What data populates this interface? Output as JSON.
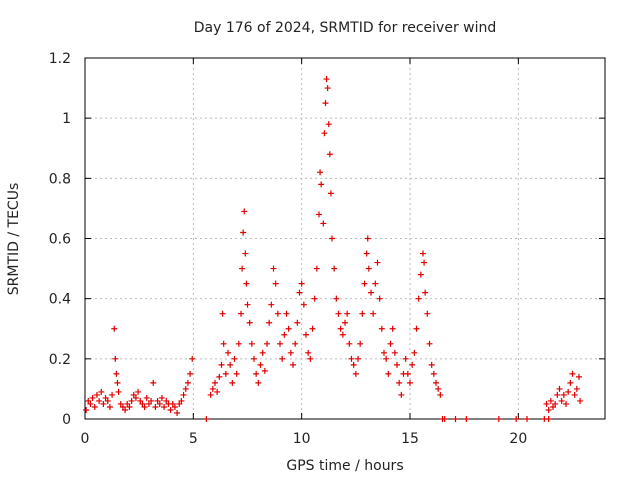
{
  "chart_data": {
    "type": "scatter",
    "title": "Day 176 of 2024, SRMTID for receiver wind",
    "xlabel": "GPS time / hours",
    "ylabel": "SRMTID / TECUs",
    "xlim": [
      0,
      24
    ],
    "ylim": [
      0,
      1.2
    ],
    "xticks": [
      0,
      5,
      10,
      15,
      20
    ],
    "yticks": [
      0,
      0.2,
      0.4,
      0.6,
      0.8,
      1,
      1.2
    ],
    "xtick_labels": [
      "0",
      "5",
      "10",
      "15",
      "20"
    ],
    "ytick_labels": [
      "0",
      "0.2",
      "0.4",
      "0.6",
      "0.8",
      "1",
      "1.2"
    ],
    "grid": true,
    "marker": "plus",
    "color": "#e00000",
    "series": [
      {
        "name": "SRMTID",
        "points": [
          [
            0.05,
            0.03
          ],
          [
            0.15,
            0.06
          ],
          [
            0.25,
            0.05
          ],
          [
            0.35,
            0.07
          ],
          [
            0.45,
            0.04
          ],
          [
            0.55,
            0.08
          ],
          [
            0.65,
            0.06
          ],
          [
            0.75,
            0.09
          ],
          [
            0.85,
            0.05
          ],
          [
            0.95,
            0.07
          ],
          [
            1.05,
            0.06
          ],
          [
            1.15,
            0.04
          ],
          [
            1.25,
            0.08
          ],
          [
            1.35,
            0.3
          ],
          [
            1.4,
            0.2
          ],
          [
            1.45,
            0.15
          ],
          [
            1.5,
            0.12
          ],
          [
            1.55,
            0.09
          ],
          [
            1.65,
            0.05
          ],
          [
            1.75,
            0.04
          ],
          [
            1.85,
            0.03
          ],
          [
            1.95,
            0.05
          ],
          [
            2.05,
            0.04
          ],
          [
            2.15,
            0.06
          ],
          [
            2.25,
            0.08
          ],
          [
            2.35,
            0.07
          ],
          [
            2.45,
            0.09
          ],
          [
            2.55,
            0.06
          ],
          [
            2.65,
            0.05
          ],
          [
            2.75,
            0.04
          ],
          [
            2.85,
            0.07
          ],
          [
            2.95,
            0.05
          ],
          [
            3.05,
            0.06
          ],
          [
            3.15,
            0.12
          ],
          [
            3.25,
            0.04
          ],
          [
            3.35,
            0.06
          ],
          [
            3.45,
            0.05
          ],
          [
            3.55,
            0.07
          ],
          [
            3.65,
            0.04
          ],
          [
            3.75,
            0.06
          ],
          [
            3.85,
            0.05
          ],
          [
            3.95,
            0.03
          ],
          [
            4.05,
            0.05
          ],
          [
            4.15,
            0.04
          ],
          [
            4.25,
            0.02
          ],
          [
            4.35,
            0.05
          ],
          [
            4.45,
            0.06
          ],
          [
            4.55,
            0.08
          ],
          [
            4.65,
            0.1
          ],
          [
            4.75,
            0.12
          ],
          [
            4.85,
            0.15
          ],
          [
            4.95,
            0.2
          ],
          [
            5.6,
            0.0
          ],
          [
            5.8,
            0.08
          ],
          [
            5.9,
            0.1
          ],
          [
            6.0,
            0.12
          ],
          [
            6.1,
            0.09
          ],
          [
            6.2,
            0.14
          ],
          [
            6.3,
            0.18
          ],
          [
            6.35,
            0.35
          ],
          [
            6.4,
            0.25
          ],
          [
            6.5,
            0.15
          ],
          [
            6.6,
            0.22
          ],
          [
            6.7,
            0.18
          ],
          [
            6.8,
            0.12
          ],
          [
            6.9,
            0.2
          ],
          [
            7.0,
            0.15
          ],
          [
            7.1,
            0.25
          ],
          [
            7.2,
            0.35
          ],
          [
            7.25,
            0.5
          ],
          [
            7.3,
            0.62
          ],
          [
            7.35,
            0.69
          ],
          [
            7.4,
            0.55
          ],
          [
            7.45,
            0.45
          ],
          [
            7.5,
            0.38
          ],
          [
            7.6,
            0.32
          ],
          [
            7.7,
            0.25
          ],
          [
            7.8,
            0.2
          ],
          [
            7.9,
            0.15
          ],
          [
            8.0,
            0.12
          ],
          [
            8.1,
            0.18
          ],
          [
            8.2,
            0.22
          ],
          [
            8.3,
            0.16
          ],
          [
            8.4,
            0.25
          ],
          [
            8.5,
            0.32
          ],
          [
            8.6,
            0.38
          ],
          [
            8.7,
            0.5
          ],
          [
            8.8,
            0.45
          ],
          [
            8.9,
            0.35
          ],
          [
            9.0,
            0.25
          ],
          [
            9.1,
            0.2
          ],
          [
            9.2,
            0.28
          ],
          [
            9.3,
            0.35
          ],
          [
            9.4,
            0.3
          ],
          [
            9.5,
            0.22
          ],
          [
            9.6,
            0.18
          ],
          [
            9.7,
            0.25
          ],
          [
            9.8,
            0.32
          ],
          [
            9.9,
            0.42
          ],
          [
            10.0,
            0.45
          ],
          [
            10.1,
            0.38
          ],
          [
            10.2,
            0.28
          ],
          [
            10.3,
            0.22
          ],
          [
            10.4,
            0.2
          ],
          [
            10.5,
            0.3
          ],
          [
            10.6,
            0.4
          ],
          [
            10.7,
            0.5
          ],
          [
            10.8,
            0.68
          ],
          [
            10.85,
            0.82
          ],
          [
            10.9,
            0.78
          ],
          [
            11.0,
            0.65
          ],
          [
            11.05,
            0.95
          ],
          [
            11.1,
            1.05
          ],
          [
            11.15,
            1.13
          ],
          [
            11.2,
            1.1
          ],
          [
            11.25,
            0.98
          ],
          [
            11.3,
            0.88
          ],
          [
            11.35,
            0.75
          ],
          [
            11.4,
            0.6
          ],
          [
            11.5,
            0.5
          ],
          [
            11.6,
            0.4
          ],
          [
            11.7,
            0.35
          ],
          [
            11.8,
            0.3
          ],
          [
            11.9,
            0.28
          ],
          [
            12.0,
            0.32
          ],
          [
            12.1,
            0.35
          ],
          [
            12.2,
            0.25
          ],
          [
            12.3,
            0.2
          ],
          [
            12.4,
            0.18
          ],
          [
            12.5,
            0.15
          ],
          [
            12.6,
            0.2
          ],
          [
            12.7,
            0.25
          ],
          [
            12.8,
            0.35
          ],
          [
            12.9,
            0.45
          ],
          [
            13.0,
            0.55
          ],
          [
            13.05,
            0.6
          ],
          [
            13.1,
            0.5
          ],
          [
            13.2,
            0.42
          ],
          [
            13.3,
            0.35
          ],
          [
            13.4,
            0.45
          ],
          [
            13.5,
            0.52
          ],
          [
            13.6,
            0.4
          ],
          [
            13.7,
            0.3
          ],
          [
            13.8,
            0.22
          ],
          [
            13.9,
            0.2
          ],
          [
            14.0,
            0.15
          ],
          [
            14.1,
            0.25
          ],
          [
            14.2,
            0.3
          ],
          [
            14.3,
            0.22
          ],
          [
            14.4,
            0.18
          ],
          [
            14.5,
            0.12
          ],
          [
            14.6,
            0.08
          ],
          [
            14.7,
            0.15
          ],
          [
            14.8,
            0.2
          ],
          [
            14.9,
            0.15
          ],
          [
            15.0,
            0.12
          ],
          [
            15.1,
            0.18
          ],
          [
            15.2,
            0.22
          ],
          [
            15.3,
            0.3
          ],
          [
            15.4,
            0.4
          ],
          [
            15.5,
            0.48
          ],
          [
            15.6,
            0.55
          ],
          [
            15.65,
            0.52
          ],
          [
            15.7,
            0.42
          ],
          [
            15.8,
            0.35
          ],
          [
            15.9,
            0.25
          ],
          [
            16.0,
            0.18
          ],
          [
            16.1,
            0.15
          ],
          [
            16.2,
            0.12
          ],
          [
            16.3,
            0.1
          ],
          [
            16.4,
            0.08
          ],
          [
            16.5,
            0.0
          ],
          [
            16.6,
            0.0
          ],
          [
            17.1,
            0.0
          ],
          [
            17.6,
            0.0
          ],
          [
            19.1,
            0.0
          ],
          [
            19.9,
            0.0
          ],
          [
            20.4,
            0.0
          ],
          [
            21.2,
            0.0
          ],
          [
            21.4,
            0.0
          ],
          [
            21.3,
            0.05
          ],
          [
            21.4,
            0.03
          ],
          [
            21.5,
            0.06
          ],
          [
            21.6,
            0.04
          ],
          [
            21.7,
            0.05
          ],
          [
            21.8,
            0.08
          ],
          [
            21.9,
            0.1
          ],
          [
            22.0,
            0.06
          ],
          [
            22.1,
            0.08
          ],
          [
            22.2,
            0.05
          ],
          [
            22.3,
            0.09
          ],
          [
            22.4,
            0.12
          ],
          [
            22.5,
            0.15
          ],
          [
            22.6,
            0.08
          ],
          [
            22.7,
            0.1
          ],
          [
            22.8,
            0.14
          ],
          [
            22.85,
            0.06
          ]
        ]
      }
    ]
  }
}
